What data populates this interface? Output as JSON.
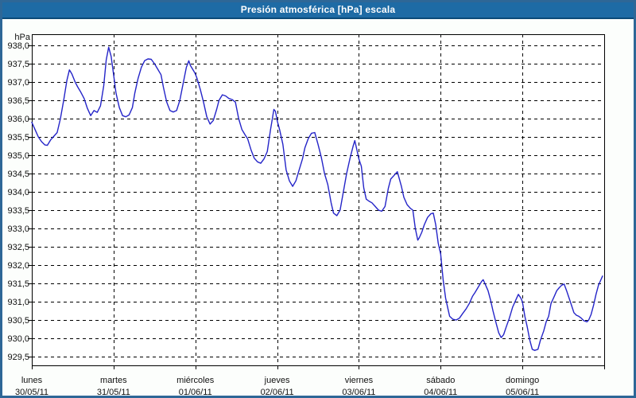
{
  "window": {
    "title": "Presión atmosférica [hPa] escala"
  },
  "colors": {
    "frame": "#2e6797",
    "titlebar_bg": "#1e6ba5",
    "titlebar_edge": "#0b4a78",
    "page_bg": "#fcfefc",
    "plot_bg": "#ffffff",
    "axis": "#000000",
    "grid": "#000000",
    "text": "#111111",
    "line": "#2424c8"
  },
  "chart_data": {
    "type": "line",
    "title": "Presión atmosférica [hPa] escala",
    "y_unit": "hPa",
    "ylabel": "hPa",
    "xlabel": "",
    "ylim": [
      929.5,
      938.0
    ],
    "ystep": 0.5,
    "grid": "dashed",
    "legend": "none",
    "decimal_separator": ",",
    "ytick_labels": [
      "938,0",
      "937,5",
      "937,0",
      "936,5",
      "936,0",
      "935,5",
      "935,0",
      "934,5",
      "934,0",
      "933,5",
      "933,0",
      "932,5",
      "932,0",
      "931,5",
      "931,0",
      "930,5",
      "930,0",
      "929,5"
    ],
    "days": [
      {
        "name": "lunes",
        "date": "30/05/11"
      },
      {
        "name": "martes",
        "date": "31/05/11"
      },
      {
        "name": "miércoles",
        "date": "01/06/11"
      },
      {
        "name": "jueves",
        "date": "02/06/11"
      },
      {
        "name": "viernes",
        "date": "03/06/11"
      },
      {
        "name": "sábado",
        "date": "04/06/11"
      },
      {
        "name": "domingo",
        "date": "05/06/11"
      }
    ],
    "x_range_days": [
      0,
      7
    ],
    "points": [
      [
        0.0,
        935.9
      ],
      [
        0.04,
        935.7
      ],
      [
        0.08,
        935.5
      ],
      [
        0.12,
        935.37
      ],
      [
        0.16,
        935.28
      ],
      [
        0.19,
        935.27
      ],
      [
        0.23,
        935.42
      ],
      [
        0.27,
        935.52
      ],
      [
        0.31,
        935.62
      ],
      [
        0.35,
        936.0
      ],
      [
        0.39,
        936.5
      ],
      [
        0.43,
        937.05
      ],
      [
        0.46,
        937.33
      ],
      [
        0.49,
        937.22
      ],
      [
        0.53,
        937.0
      ],
      [
        0.56,
        936.87
      ],
      [
        0.6,
        936.72
      ],
      [
        0.64,
        936.55
      ],
      [
        0.68,
        936.28
      ],
      [
        0.72,
        936.08
      ],
      [
        0.76,
        936.22
      ],
      [
        0.8,
        936.17
      ],
      [
        0.84,
        936.35
      ],
      [
        0.88,
        936.9
      ],
      [
        0.91,
        937.6
      ],
      [
        0.94,
        937.95
      ],
      [
        0.97,
        937.7
      ],
      [
        1.0,
        937.2
      ],
      [
        1.03,
        936.7
      ],
      [
        1.07,
        936.3
      ],
      [
        1.11,
        936.08
      ],
      [
        1.15,
        936.05
      ],
      [
        1.19,
        936.1
      ],
      [
        1.23,
        936.3
      ],
      [
        1.26,
        936.7
      ],
      [
        1.3,
        937.1
      ],
      [
        1.34,
        937.4
      ],
      [
        1.38,
        937.58
      ],
      [
        1.42,
        937.63
      ],
      [
        1.46,
        937.62
      ],
      [
        1.5,
        937.5
      ],
      [
        1.54,
        937.35
      ],
      [
        1.58,
        937.2
      ],
      [
        1.61,
        936.85
      ],
      [
        1.65,
        936.45
      ],
      [
        1.69,
        936.22
      ],
      [
        1.73,
        936.18
      ],
      [
        1.77,
        936.22
      ],
      [
        1.81,
        936.5
      ],
      [
        1.85,
        936.95
      ],
      [
        1.89,
        937.4
      ],
      [
        1.92,
        937.58
      ],
      [
        1.94,
        937.45
      ],
      [
        1.98,
        937.3
      ],
      [
        2.0,
        937.22
      ],
      [
        2.02,
        937.1
      ],
      [
        2.06,
        936.8
      ],
      [
        2.1,
        936.45
      ],
      [
        2.14,
        936.05
      ],
      [
        2.18,
        935.85
      ],
      [
        2.22,
        935.95
      ],
      [
        2.26,
        936.25
      ],
      [
        2.29,
        936.5
      ],
      [
        2.33,
        936.65
      ],
      [
        2.37,
        936.62
      ],
      [
        2.41,
        936.55
      ],
      [
        2.45,
        936.52
      ],
      [
        2.49,
        936.45
      ],
      [
        2.53,
        936.0
      ],
      [
        2.57,
        935.7
      ],
      [
        2.61,
        935.55
      ],
      [
        2.64,
        935.45
      ],
      [
        2.68,
        935.15
      ],
      [
        2.72,
        934.92
      ],
      [
        2.76,
        934.82
      ],
      [
        2.8,
        934.78
      ],
      [
        2.84,
        934.9
      ],
      [
        2.88,
        935.1
      ],
      [
        2.92,
        935.7
      ],
      [
        2.96,
        936.25
      ],
      [
        2.98,
        936.2
      ],
      [
        3.0,
        935.95
      ],
      [
        3.03,
        935.7
      ],
      [
        3.07,
        935.3
      ],
      [
        3.11,
        934.6
      ],
      [
        3.15,
        934.3
      ],
      [
        3.19,
        934.15
      ],
      [
        3.23,
        934.3
      ],
      [
        3.27,
        934.6
      ],
      [
        3.31,
        934.9
      ],
      [
        3.34,
        935.2
      ],
      [
        3.38,
        935.45
      ],
      [
        3.42,
        935.6
      ],
      [
        3.46,
        935.62
      ],
      [
        3.5,
        935.3
      ],
      [
        3.54,
        934.95
      ],
      [
        3.58,
        934.5
      ],
      [
        3.62,
        934.2
      ],
      [
        3.66,
        933.7
      ],
      [
        3.69,
        933.42
      ],
      [
        3.73,
        933.35
      ],
      [
        3.77,
        933.5
      ],
      [
        3.81,
        934.0
      ],
      [
        3.85,
        934.5
      ],
      [
        3.89,
        934.9
      ],
      [
        3.93,
        935.25
      ],
      [
        3.95,
        935.4
      ],
      [
        3.98,
        935.1
      ],
      [
        4.0,
        934.9
      ],
      [
        4.03,
        934.7
      ],
      [
        4.06,
        934.1
      ],
      [
        4.09,
        933.8
      ],
      [
        4.12,
        933.75
      ],
      [
        4.16,
        933.7
      ],
      [
        4.2,
        933.6
      ],
      [
        4.24,
        933.5
      ],
      [
        4.28,
        933.47
      ],
      [
        4.32,
        933.6
      ],
      [
        4.36,
        934.1
      ],
      [
        4.39,
        934.35
      ],
      [
        4.43,
        934.45
      ],
      [
        4.47,
        934.55
      ],
      [
        4.52,
        934.15
      ],
      [
        4.55,
        933.85
      ],
      [
        4.59,
        933.65
      ],
      [
        4.63,
        933.55
      ],
      [
        4.66,
        933.5
      ],
      [
        4.69,
        933.0
      ],
      [
        4.72,
        932.68
      ],
      [
        4.74,
        932.75
      ],
      [
        4.77,
        932.9
      ],
      [
        4.8,
        933.1
      ],
      [
        4.84,
        933.3
      ],
      [
        4.88,
        933.4
      ],
      [
        4.91,
        933.42
      ],
      [
        4.94,
        933.1
      ],
      [
        4.97,
        932.6
      ],
      [
        5.0,
        932.3
      ],
      [
        5.03,
        931.6
      ],
      [
        5.06,
        931.1
      ],
      [
        5.09,
        930.8
      ],
      [
        5.11,
        930.6
      ],
      [
        5.15,
        930.52
      ],
      [
        5.19,
        930.5
      ],
      [
        5.23,
        930.55
      ],
      [
        5.27,
        930.68
      ],
      [
        5.31,
        930.8
      ],
      [
        5.35,
        930.95
      ],
      [
        5.39,
        931.15
      ],
      [
        5.42,
        931.25
      ],
      [
        5.46,
        931.4
      ],
      [
        5.5,
        931.55
      ],
      [
        5.52,
        931.6
      ],
      [
        5.55,
        931.45
      ],
      [
        5.58,
        931.3
      ],
      [
        5.61,
        931.05
      ],
      [
        5.64,
        930.75
      ],
      [
        5.68,
        930.4
      ],
      [
        5.71,
        930.15
      ],
      [
        5.74,
        930.02
      ],
      [
        5.77,
        930.1
      ],
      [
        5.8,
        930.3
      ],
      [
        5.84,
        930.55
      ],
      [
        5.88,
        930.85
      ],
      [
        5.92,
        931.05
      ],
      [
        5.95,
        931.2
      ],
      [
        5.98,
        931.1
      ],
      [
        6.0,
        931.0
      ],
      [
        6.03,
        930.6
      ],
      [
        6.06,
        930.3
      ],
      [
        6.09,
        929.95
      ],
      [
        6.12,
        929.7
      ],
      [
        6.15,
        929.67
      ],
      [
        6.19,
        929.7
      ],
      [
        6.22,
        929.95
      ],
      [
        6.26,
        930.2
      ],
      [
        6.29,
        930.45
      ],
      [
        6.32,
        930.6
      ],
      [
        6.35,
        930.95
      ],
      [
        6.39,
        931.15
      ],
      [
        6.42,
        931.3
      ],
      [
        6.45,
        931.38
      ],
      [
        6.48,
        931.45
      ],
      [
        6.51,
        931.48
      ],
      [
        6.54,
        931.3
      ],
      [
        6.57,
        931.1
      ],
      [
        6.6,
        930.9
      ],
      [
        6.63,
        930.7
      ],
      [
        6.66,
        930.63
      ],
      [
        6.69,
        930.6
      ],
      [
        6.72,
        930.55
      ],
      [
        6.75,
        930.48
      ],
      [
        6.79,
        930.45
      ],
      [
        6.81,
        930.5
      ],
      [
        6.84,
        930.65
      ],
      [
        6.87,
        930.9
      ],
      [
        6.9,
        931.2
      ],
      [
        6.93,
        931.45
      ],
      [
        6.96,
        931.6
      ],
      [
        6.98,
        931.7
      ]
    ]
  }
}
